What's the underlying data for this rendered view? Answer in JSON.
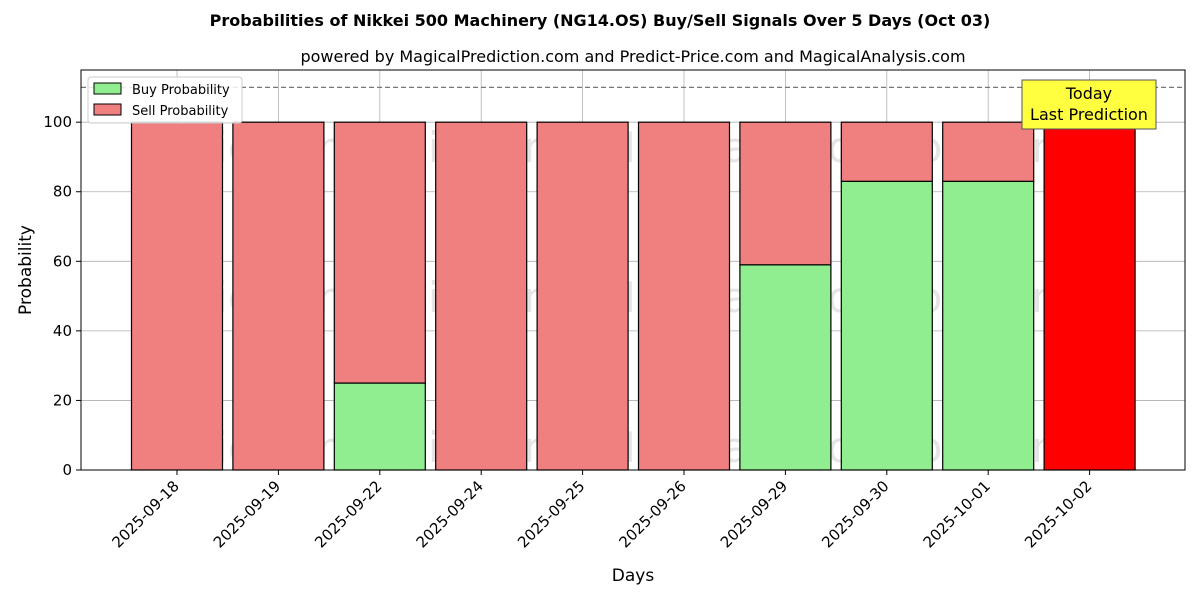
{
  "chart_data": {
    "type": "bar",
    "title": "Probabilities of Nikkei 500 Machinery (NG14.OS) Buy/Sell Signals Over 5 Days (Oct 03)",
    "subtitle": "powered by MagicalPrediction.com and Predict-Price.com and MagicalAnalysis.com",
    "xlabel": "Days",
    "ylabel": "Probability",
    "ylim": [
      0,
      115
    ],
    "yticks": [
      0,
      20,
      40,
      60,
      80,
      100
    ],
    "grid": true,
    "legend_position": "top-left",
    "reference_line": 110,
    "categories": [
      "2025-09-18",
      "2025-09-19",
      "2025-09-22",
      "2025-09-24",
      "2025-09-25",
      "2025-09-26",
      "2025-09-29",
      "2025-09-30",
      "2025-10-01",
      "2025-10-02"
    ],
    "series": [
      {
        "name": "Buy Probability",
        "color": "#90ee90",
        "values": [
          0,
          0,
          25,
          0,
          0,
          0,
          59,
          83,
          83,
          0
        ]
      },
      {
        "name": "Sell Probability",
        "color": "#f08080",
        "values": [
          100,
          100,
          75,
          100,
          100,
          100,
          41,
          17,
          17,
          100
        ]
      }
    ],
    "highlight": {
      "category": "2025-10-02",
      "color": "#ff0000"
    },
    "annotation": {
      "lines": [
        "Today",
        "Last Prediction"
      ],
      "background": "#ffff40"
    },
    "watermarks": [
      "MagicalAnalysis.com",
      "MagicalPrediction.com"
    ]
  }
}
